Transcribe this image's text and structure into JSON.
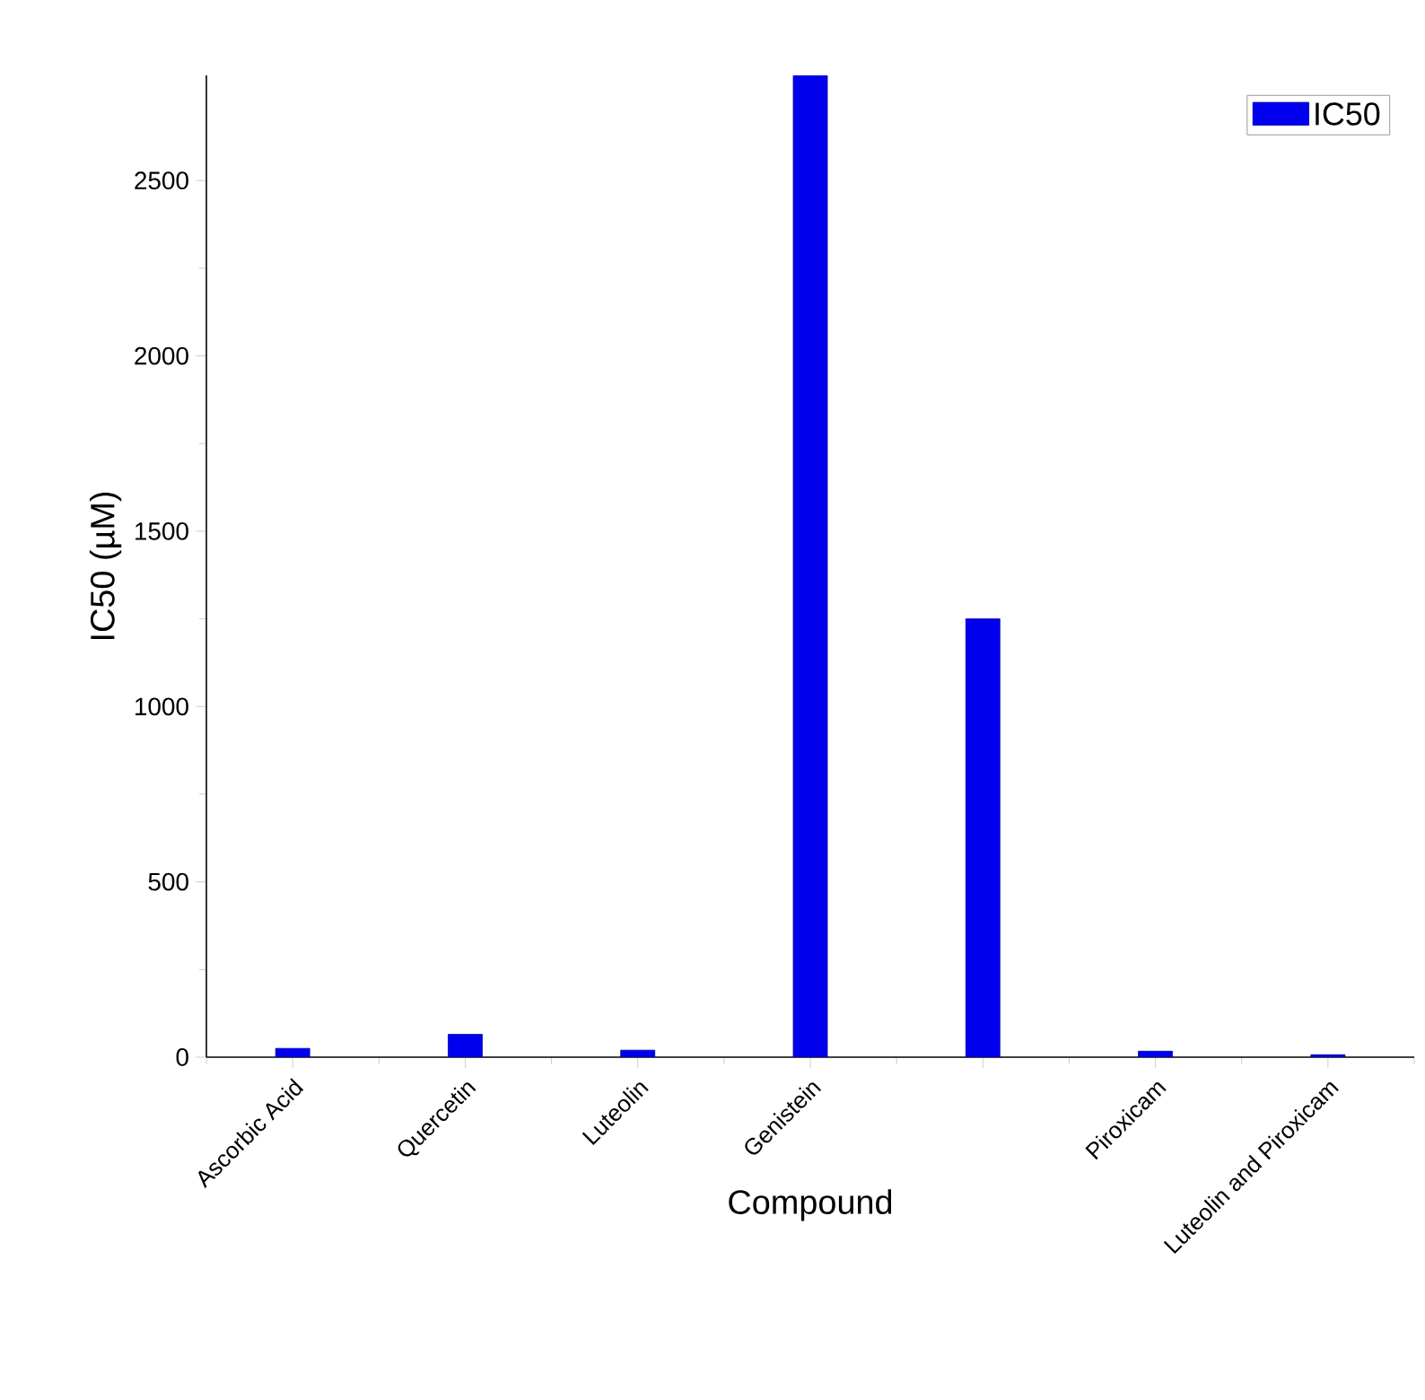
{
  "chart_data": {
    "type": "bar",
    "xlabel": "Compound",
    "ylabel": "IC50 (µM)",
    "categories": [
      "Ascorbic Acid",
      "Quercetin",
      "Luteolin",
      "Genistein",
      null,
      "Piroxicam",
      "Luteolin and Piroxicam"
    ],
    "series": [
      {
        "name": "IC50",
        "color": "#0000ee",
        "values": [
          25,
          65,
          20,
          2800,
          1250,
          17,
          7
        ]
      }
    ],
    "ylim": [
      0,
      2800
    ],
    "yticks": [
      0,
      500,
      1000,
      1500,
      2000,
      2500
    ],
    "grid": false,
    "legend": "top right"
  }
}
